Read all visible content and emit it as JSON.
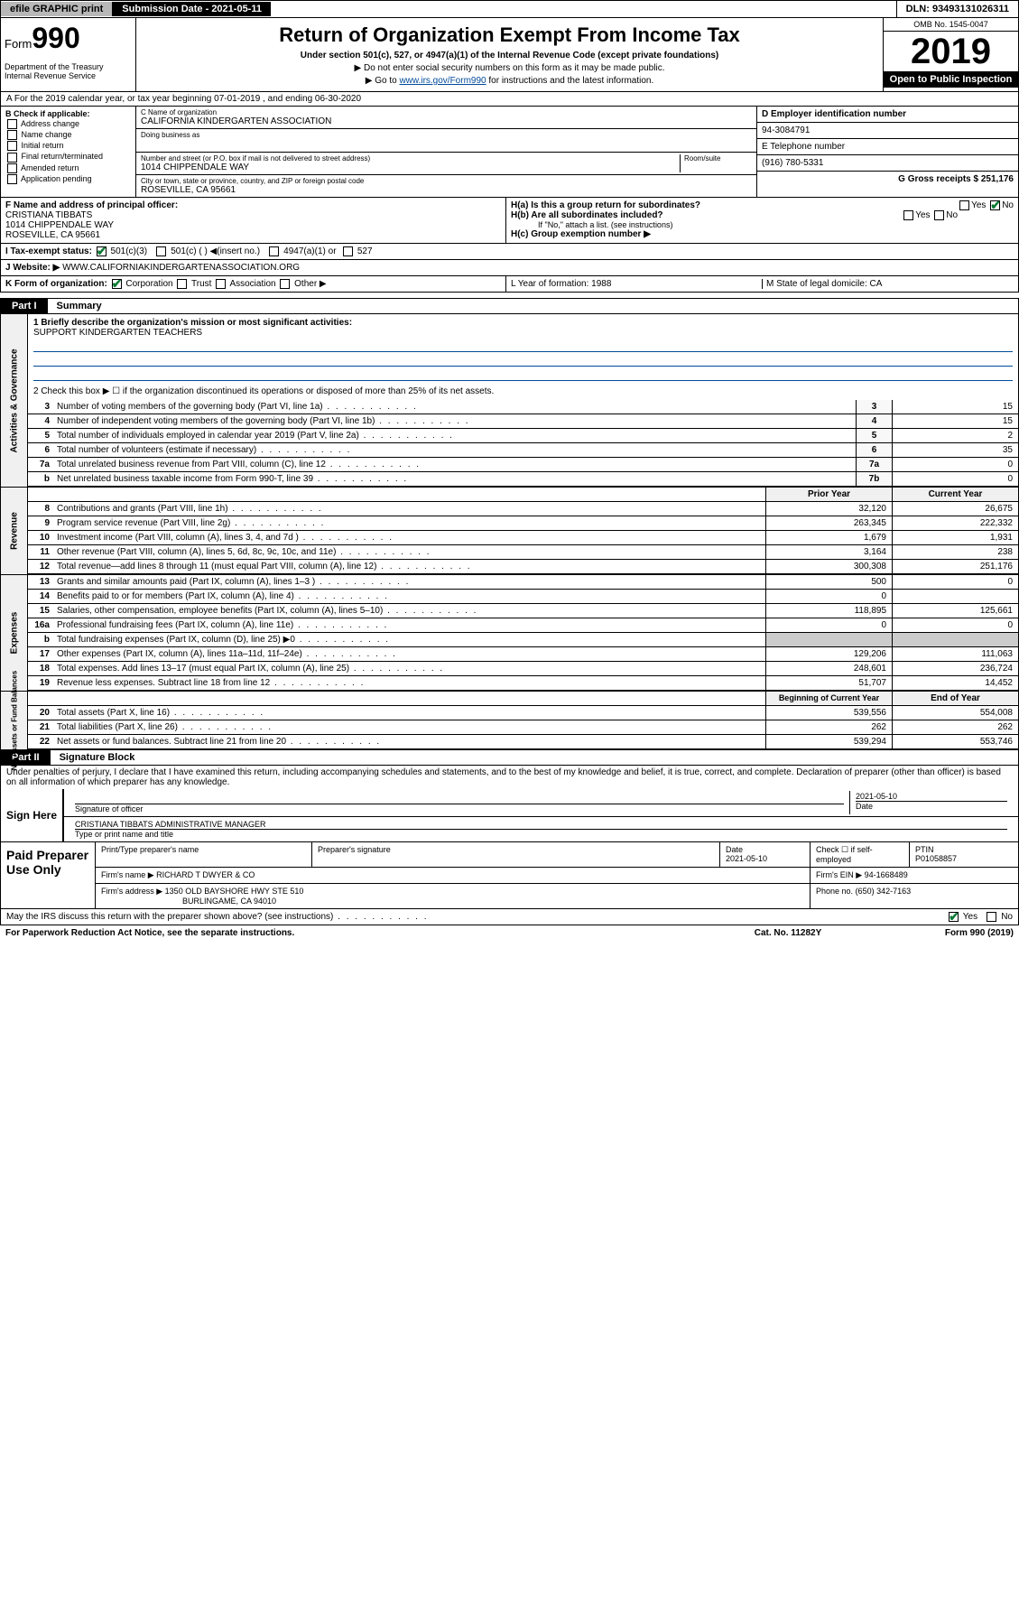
{
  "topbar": {
    "efile": "efile GRAPHIC print",
    "submission": "Submission Date - 2021-05-11",
    "dln": "DLN: 93493131026311"
  },
  "header": {
    "form_prefix": "Form",
    "form_number": "990",
    "dept": "Department of the Treasury\nInternal Revenue Service",
    "title": "Return of Organization Exempt From Income Tax",
    "sub": "Under section 501(c), 527, or 4947(a)(1) of the Internal Revenue Code (except private foundations)",
    "note1": "▶ Do not enter social security numbers on this form as it may be made public.",
    "note2_pre": "▶ Go to ",
    "note2_link": "www.irs.gov/Form990",
    "note2_post": " for instructions and the latest information.",
    "omb": "OMB No. 1545-0047",
    "year": "2019",
    "open_pub": "Open to Public Inspection"
  },
  "lineA": "A  For the 2019 calendar year, or tax year beginning 07-01-2019   , and ending 06-30-2020",
  "colB": {
    "hdr": "B Check if applicable:",
    "items": [
      "Address change",
      "Name change",
      "Initial return",
      "Final return/terminated",
      "Amended return",
      "Application pending"
    ]
  },
  "org": {
    "c_lbl": "C Name of organization",
    "c_val": "CALIFORNIA KINDERGARTEN ASSOCIATION",
    "dba_lbl": "Doing business as",
    "addr_lbl": "Number and street (or P.O. box if mail is not delivered to street address)",
    "room_lbl": "Room/suite",
    "addr_val": "1014 CHIPPENDALE WAY",
    "city_lbl": "City or town, state or province, country, and ZIP or foreign postal code",
    "city_val": "ROSEVILLE, CA  95661",
    "f_lbl": "F  Name and address of principal officer:",
    "f_name": "CRISTIANA TIBBATS",
    "f_addr1": "1014 CHIPPENDALE WAY",
    "f_addr2": "ROSEVILLE, CA  95661"
  },
  "right": {
    "d_lbl": "D Employer identification number",
    "d_val": "94-3084791",
    "e_lbl": "E Telephone number",
    "e_val": "(916) 780-5331",
    "g_lbl": "G Gross receipts $ 251,176",
    "ha": "H(a)  Is this a group return for subordinates?",
    "hb": "H(b)  Are all subordinates included?",
    "hb_note": "If \"No,\" attach a list. (see instructions)",
    "hc": "H(c)  Group exemption number ▶"
  },
  "rowI": {
    "lbl": "I   Tax-exempt status:",
    "o1": "501(c)(3)",
    "o2": "501(c) (  ) ◀(insert no.)",
    "o3": "4947(a)(1) or",
    "o4": "527"
  },
  "rowJ": {
    "lbl": "J   Website: ▶",
    "val": "WWW.CALIFORNIAKINDERGARTENASSOCIATION.ORG"
  },
  "rowK": {
    "lbl": "K Form of organization:",
    "o1": "Corporation",
    "o2": "Trust",
    "o3": "Association",
    "o4": "Other ▶",
    "l": "L Year of formation: 1988",
    "m": "M State of legal domicile: CA"
  },
  "part1": {
    "tab": "Part I",
    "title": "Summary",
    "q1_lbl": "1  Briefly describe the organization's mission or most significant activities:",
    "q1_val": "SUPPORT KINDERGARTEN TEACHERS",
    "q2": "2   Check this box ▶ ☐  if the organization discontinued its operations or disposed of more than 25% of its net assets.",
    "vtab1": "Activities & Governance",
    "vtab2": "Revenue",
    "vtab3": "Expenses",
    "vtab4": "Net Assets or Fund Balances",
    "rows_ag": [
      {
        "n": "3",
        "t": "Number of voting members of the governing body (Part VI, line 1a)",
        "c": "3",
        "v": "15"
      },
      {
        "n": "4",
        "t": "Number of independent voting members of the governing body (Part VI, line 1b)",
        "c": "4",
        "v": "15"
      },
      {
        "n": "5",
        "t": "Total number of individuals employed in calendar year 2019 (Part V, line 2a)",
        "c": "5",
        "v": "2"
      },
      {
        "n": "6",
        "t": "Total number of volunteers (estimate if necessary)",
        "c": "6",
        "v": "35"
      },
      {
        "n": "7a",
        "t": "Total unrelated business revenue from Part VIII, column (C), line 12",
        "c": "7a",
        "v": "0"
      },
      {
        "n": "b",
        "t": "Net unrelated business taxable income from Form 990-T, line 39",
        "c": "7b",
        "v": "0"
      }
    ],
    "col_hdr_prior": "Prior Year",
    "col_hdr_curr": "Current Year",
    "rows_rev": [
      {
        "n": "8",
        "t": "Contributions and grants (Part VIII, line 1h)",
        "p": "32,120",
        "c": "26,675"
      },
      {
        "n": "9",
        "t": "Program service revenue (Part VIII, line 2g)",
        "p": "263,345",
        "c": "222,332"
      },
      {
        "n": "10",
        "t": "Investment income (Part VIII, column (A), lines 3, 4, and 7d )",
        "p": "1,679",
        "c": "1,931"
      },
      {
        "n": "11",
        "t": "Other revenue (Part VIII, column (A), lines 5, 6d, 8c, 9c, 10c, and 11e)",
        "p": "3,164",
        "c": "238"
      },
      {
        "n": "12",
        "t": "Total revenue—add lines 8 through 11 (must equal Part VIII, column (A), line 12)",
        "p": "300,308",
        "c": "251,176"
      }
    ],
    "rows_exp": [
      {
        "n": "13",
        "t": "Grants and similar amounts paid (Part IX, column (A), lines 1–3 )",
        "p": "500",
        "c": "0"
      },
      {
        "n": "14",
        "t": "Benefits paid to or for members (Part IX, column (A), line 4)",
        "p": "0",
        "c": ""
      },
      {
        "n": "15",
        "t": "Salaries, other compensation, employee benefits (Part IX, column (A), lines 5–10)",
        "p": "118,895",
        "c": "125,661"
      },
      {
        "n": "16a",
        "t": "Professional fundraising fees (Part IX, column (A), line 11e)",
        "p": "0",
        "c": "0"
      },
      {
        "n": "b",
        "t": "Total fundraising expenses (Part IX, column (D), line 25) ▶0",
        "p": "",
        "c": ""
      },
      {
        "n": "17",
        "t": "Other expenses (Part IX, column (A), lines 11a–11d, 11f–24e)",
        "p": "129,206",
        "c": "111,063"
      },
      {
        "n": "18",
        "t": "Total expenses. Add lines 13–17 (must equal Part IX, column (A), line 25)",
        "p": "248,601",
        "c": "236,724"
      },
      {
        "n": "19",
        "t": "Revenue less expenses. Subtract line 18 from line 12",
        "p": "51,707",
        "c": "14,452"
      }
    ],
    "col_hdr_beg": "Beginning of Current Year",
    "col_hdr_end": "End of Year",
    "rows_na": [
      {
        "n": "20",
        "t": "Total assets (Part X, line 16)",
        "p": "539,556",
        "c": "554,008"
      },
      {
        "n": "21",
        "t": "Total liabilities (Part X, line 26)",
        "p": "262",
        "c": "262"
      },
      {
        "n": "22",
        "t": "Net assets or fund balances. Subtract line 21 from line 20",
        "p": "539,294",
        "c": "553,746"
      }
    ]
  },
  "part2": {
    "tab": "Part II",
    "title": "Signature Block",
    "decl": "Under penalties of perjury, I declare that I have examined this return, including accompanying schedules and statements, and to the best of my knowledge and belief, it is true, correct, and complete. Declaration of preparer (other than officer) is based on all information of which preparer has any knowledge."
  },
  "sign": {
    "left": "Sign Here",
    "sig_lbl": "Signature of officer",
    "date": "2021-05-10",
    "date_lbl": "Date",
    "name": "CRISTIANA TIBBATS  ADMINISTRATIVE MANAGER",
    "name_lbl": "Type or print name and title"
  },
  "prep": {
    "left": "Paid Preparer Use Only",
    "h1": "Print/Type preparer's name",
    "h2": "Preparer's signature",
    "h3": "Date",
    "h3v": "2021-05-10",
    "h4": "Check ☐ if self-employed",
    "h5": "PTIN",
    "h5v": "P01058857",
    "firm_lbl": "Firm's name    ▶",
    "firm": "RICHARD T DWYER & CO",
    "ein_lbl": "Firm's EIN ▶",
    "ein": "94-1668489",
    "addr_lbl": "Firm's address ▶",
    "addr1": "1350 OLD BAYSHORE HWY STE 510",
    "addr2": "BURLINGAME, CA  94010",
    "phone_lbl": "Phone no.",
    "phone": "(650) 342-7163"
  },
  "discuss": "May the IRS discuss this return with the preparer shown above? (see instructions)",
  "footer": {
    "pra": "For Paperwork Reduction Act Notice, see the separate instructions.",
    "cat": "Cat. No. 11282Y",
    "form": "Form 990 (2019)"
  },
  "yn": {
    "yes": "Yes",
    "no": "No"
  },
  "colors": {
    "link": "#004b9b",
    "green_check": "#0a7a33",
    "black": "#000000",
    "gray_btn": "#b8b8b8",
    "bg": "#ffffff"
  }
}
